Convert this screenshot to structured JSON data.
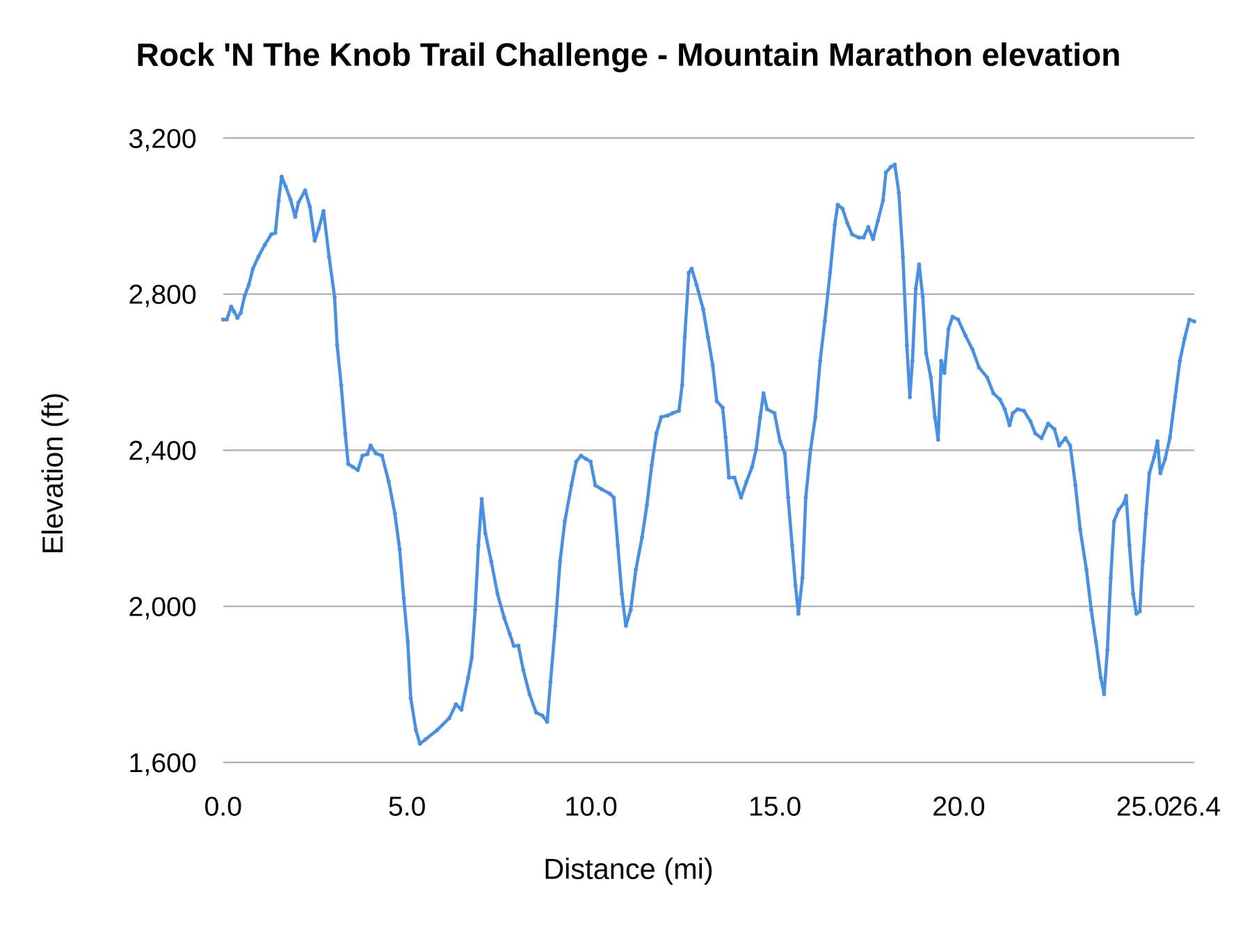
{
  "chart_data": {
    "type": "line",
    "title": "Rock 'N The Knob Trail Challenge - Mountain Marathon elevation",
    "xlabel": "Distance (mi)",
    "ylabel": "Elevation (ft)",
    "xlim": [
      0,
      26.4
    ],
    "ylim": [
      1600,
      3200
    ],
    "x_ticks": [
      "0.0",
      "5.0",
      "10.0",
      "15.0",
      "20.0",
      "25.0",
      "26.4"
    ],
    "x_tick_values": [
      0,
      5,
      10,
      15,
      20,
      25,
      26.4
    ],
    "y_ticks": [
      "1,600",
      "2,000",
      "2,400",
      "2,800",
      "3,200"
    ],
    "y_tick_values": [
      1600,
      2000,
      2400,
      2800,
      3200
    ],
    "grid": "horizontal",
    "legend": "none",
    "markers": true,
    "color": "#4a90e2",
    "points": [
      [
        0,
        2735
      ],
      [
        0.1,
        2735
      ],
      [
        0.22,
        2768
      ],
      [
        0.3,
        2755
      ],
      [
        0.39,
        2739
      ],
      [
        0.48,
        2752
      ],
      [
        0.59,
        2797
      ],
      [
        0.7,
        2824
      ],
      [
        0.81,
        2865
      ],
      [
        0.96,
        2896
      ],
      [
        1.13,
        2926
      ],
      [
        1.31,
        2953
      ],
      [
        1.42,
        2957
      ],
      [
        1.51,
        3040
      ],
      [
        1.59,
        3101
      ],
      [
        1.7,
        3076
      ],
      [
        1.83,
        3043
      ],
      [
        1.96,
        2998
      ],
      [
        2.05,
        3035
      ],
      [
        2.23,
        3066
      ],
      [
        2.36,
        3023
      ],
      [
        2.49,
        2937
      ],
      [
        2.6,
        2968
      ],
      [
        2.73,
        3013
      ],
      [
        2.88,
        2896
      ],
      [
        3.03,
        2793
      ],
      [
        3.1,
        2669
      ],
      [
        3.21,
        2567
      ],
      [
        3.32,
        2443
      ],
      [
        3.4,
        2365
      ],
      [
        3.53,
        2357
      ],
      [
        3.66,
        2349
      ],
      [
        3.79,
        2386
      ],
      [
        3.92,
        2390
      ],
      [
        4.01,
        2412
      ],
      [
        4.15,
        2392
      ],
      [
        4.32,
        2386
      ],
      [
        4.5,
        2320
      ],
      [
        4.67,
        2238
      ],
      [
        4.8,
        2146
      ],
      [
        4.91,
        2022
      ],
      [
        5.02,
        1909
      ],
      [
        5.1,
        1765
      ],
      [
        5.24,
        1683
      ],
      [
        5.35,
        1648
      ],
      [
        5.5,
        1659
      ],
      [
        5.82,
        1683
      ],
      [
        6.15,
        1714
      ],
      [
        6.33,
        1749
      ],
      [
        6.48,
        1735
      ],
      [
        6.66,
        1817
      ],
      [
        6.76,
        1868
      ],
      [
        6.85,
        1991
      ],
      [
        6.94,
        2156
      ],
      [
        7.03,
        2275
      ],
      [
        7.13,
        2187
      ],
      [
        7.29,
        2115
      ],
      [
        7.46,
        2032
      ],
      [
        7.64,
        1971
      ],
      [
        7.79,
        1930
      ],
      [
        7.9,
        1899
      ],
      [
        8.03,
        1899
      ],
      [
        8.16,
        1837
      ],
      [
        8.33,
        1775
      ],
      [
        8.51,
        1728
      ],
      [
        8.68,
        1720
      ],
      [
        8.81,
        1704
      ],
      [
        8.9,
        1806
      ],
      [
        9.03,
        1950
      ],
      [
        9.16,
        2115
      ],
      [
        9.29,
        2218
      ],
      [
        9.47,
        2310
      ],
      [
        9.6,
        2371
      ],
      [
        9.73,
        2386
      ],
      [
        9.86,
        2378
      ],
      [
        9.99,
        2371
      ],
      [
        10.12,
        2310
      ],
      [
        10.29,
        2300
      ],
      [
        10.51,
        2289
      ],
      [
        10.62,
        2279
      ],
      [
        10.73,
        2156
      ],
      [
        10.84,
        2032
      ],
      [
        10.95,
        1950
      ],
      [
        11.08,
        1991
      ],
      [
        11.22,
        2094
      ],
      [
        11.39,
        2177
      ],
      [
        11.52,
        2259
      ],
      [
        11.65,
        2361
      ],
      [
        11.78,
        2443
      ],
      [
        11.91,
        2485
      ],
      [
        12.09,
        2489
      ],
      [
        12.22,
        2495
      ],
      [
        12.39,
        2501
      ],
      [
        12.48,
        2567
      ],
      [
        12.55,
        2690
      ],
      [
        12.66,
        2855
      ],
      [
        12.74,
        2865
      ],
      [
        12.87,
        2824
      ],
      [
        13.05,
        2762
      ],
      [
        13.18,
        2690
      ],
      [
        13.31,
        2618
      ],
      [
        13.42,
        2526
      ],
      [
        13.58,
        2509
      ],
      [
        13.66,
        2433
      ],
      [
        13.75,
        2330
      ],
      [
        13.9,
        2330
      ],
      [
        14.08,
        2279
      ],
      [
        14.23,
        2320
      ],
      [
        14.38,
        2357
      ],
      [
        14.49,
        2402
      ],
      [
        14.6,
        2485
      ],
      [
        14.69,
        2546
      ],
      [
        14.79,
        2505
      ],
      [
        14.99,
        2495
      ],
      [
        15.14,
        2423
      ],
      [
        15.27,
        2392
      ],
      [
        15.36,
        2279
      ],
      [
        15.47,
        2156
      ],
      [
        15.56,
        2053
      ],
      [
        15.64,
        1981
      ],
      [
        15.75,
        2073
      ],
      [
        15.84,
        2279
      ],
      [
        15.97,
        2402
      ],
      [
        16.1,
        2485
      ],
      [
        16.23,
        2629
      ],
      [
        16.36,
        2732
      ],
      [
        16.5,
        2855
      ],
      [
        16.63,
        2978
      ],
      [
        16.71,
        3029
      ],
      [
        16.84,
        3019
      ],
      [
        16.97,
        2982
      ],
      [
        17.1,
        2953
      ],
      [
        17.28,
        2945
      ],
      [
        17.41,
        2945
      ],
      [
        17.54,
        2972
      ],
      [
        17.67,
        2941
      ],
      [
        17.8,
        2988
      ],
      [
        17.94,
        3040
      ],
      [
        18.02,
        3112
      ],
      [
        18.15,
        3126
      ],
      [
        18.26,
        3132
      ],
      [
        18.37,
        3060
      ],
      [
        18.48,
        2896
      ],
      [
        18.59,
        2669
      ],
      [
        18.67,
        2536
      ],
      [
        18.74,
        2629
      ],
      [
        18.83,
        2814
      ],
      [
        18.92,
        2876
      ],
      [
        19.02,
        2793
      ],
      [
        19.11,
        2649
      ],
      [
        19.24,
        2587
      ],
      [
        19.35,
        2485
      ],
      [
        19.44,
        2427
      ],
      [
        19.52,
        2629
      ],
      [
        19.61,
        2598
      ],
      [
        19.72,
        2711
      ],
      [
        19.83,
        2742
      ],
      [
        19.98,
        2735
      ],
      [
        20.18,
        2694
      ],
      [
        20.37,
        2659
      ],
      [
        20.55,
        2612
      ],
      [
        20.77,
        2587
      ],
      [
        20.94,
        2546
      ],
      [
        21.12,
        2530
      ],
      [
        21.25,
        2505
      ],
      [
        21.38,
        2464
      ],
      [
        21.47,
        2495
      ],
      [
        21.6,
        2505
      ],
      [
        21.77,
        2501
      ],
      [
        21.95,
        2474
      ],
      [
        22.08,
        2443
      ],
      [
        22.25,
        2431
      ],
      [
        22.43,
        2468
      ],
      [
        22.6,
        2454
      ],
      [
        22.73,
        2412
      ],
      [
        22.9,
        2431
      ],
      [
        23.03,
        2412
      ],
      [
        23.17,
        2310
      ],
      [
        23.3,
        2197
      ],
      [
        23.47,
        2094
      ],
      [
        23.6,
        1991
      ],
      [
        23.73,
        1909
      ],
      [
        23.86,
        1817
      ],
      [
        23.95,
        1775
      ],
      [
        24.04,
        1888
      ],
      [
        24.13,
        2073
      ],
      [
        24.22,
        2218
      ],
      [
        24.35,
        2248
      ],
      [
        24.48,
        2263
      ],
      [
        24.55,
        2283
      ],
      [
        24.64,
        2156
      ],
      [
        24.74,
        2032
      ],
      [
        24.83,
        1981
      ],
      [
        24.92,
        1987
      ],
      [
        25.0,
        2115
      ],
      [
        25.09,
        2238
      ],
      [
        25.18,
        2341
      ],
      [
        25.31,
        2382
      ],
      [
        25.4,
        2423
      ],
      [
        25.48,
        2341
      ],
      [
        25.61,
        2378
      ],
      [
        25.74,
        2433
      ],
      [
        25.88,
        2536
      ],
      [
        26.01,
        2629
      ],
      [
        26.14,
        2687
      ],
      [
        26.27,
        2735
      ],
      [
        26.4,
        2730
      ]
    ]
  }
}
